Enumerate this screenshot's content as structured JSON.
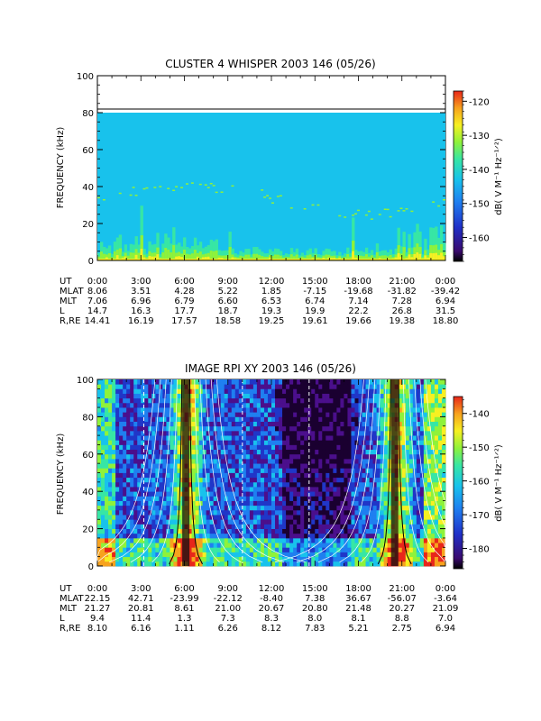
{
  "colors": {
    "whisper_bg": "#18c2ec",
    "colormap": [
      "#1a0030",
      "#4b0f8c",
      "#2036c8",
      "#1f7ff0",
      "#18c2ec",
      "#37e6a5",
      "#8ff23a",
      "#f7f022",
      "#f7a21e",
      "#e8261a"
    ]
  },
  "chart_data": [
    {
      "type": "heatmap",
      "title": "CLUSTER 4 WHISPER 2003 146 (05/26)",
      "ylabel": "FREQUENCY (kHz)",
      "ylim": [
        0,
        100
      ],
      "yticks": [
        "0",
        "20",
        "40",
        "60",
        "80",
        "100"
      ],
      "data_top_khz": 80,
      "colorbar": {
        "label": "dB( V M⁻¹ Hz⁻¹ᐟ²)",
        "range": [
          -167,
          -117
        ],
        "ticks": [
          "-120",
          "-130",
          "-140",
          "-150",
          "-160"
        ],
        "tick_values": [
          -120,
          -130,
          -140,
          -150,
          -160
        ]
      },
      "ephemeris": {
        "row_labels": [
          "UT",
          "MLAT",
          "MLT",
          "L",
          "R,RE"
        ],
        "columns": [
          [
            "0:00",
            "8.06",
            "7.06",
            "14.7",
            "14.41"
          ],
          [
            "3:00",
            "3.51",
            "6.96",
            "16.3",
            "16.19"
          ],
          [
            "6:00",
            "4.28",
            "6.79",
            "17.7",
            "17.57"
          ],
          [
            "9:00",
            "5.22",
            "6.60",
            "18.7",
            "18.58"
          ],
          [
            "12:00",
            "1.85",
            "6.53",
            "19.3",
            "19.25"
          ],
          [
            "15:00",
            "-7.15",
            "6.74",
            "19.9",
            "19.61"
          ],
          [
            "18:00",
            "-19.68",
            "7.14",
            "22.2",
            "19.66"
          ],
          [
            "21:00",
            "-31.82",
            "7.28",
            "26.8",
            "19.38"
          ],
          [
            "0:00",
            "-39.42",
            "6.94",
            "31.5",
            "18.80"
          ]
        ]
      }
    },
    {
      "type": "heatmap",
      "title": "IMAGE RPI XY 2003 146 (05/26)",
      "ylabel": "FREQUENCY (kHz)",
      "ylim": [
        0,
        100
      ],
      "yticks": [
        "0",
        "20",
        "40",
        "60",
        "80",
        "100"
      ],
      "perigee_hours": [
        6.1,
        20.5
      ],
      "colorbar": {
        "label": "dB( V M⁻¹ Hz⁻¹ᐟ²)",
        "range": [
          -186,
          -135
        ],
        "ticks": [
          "-140",
          "-150",
          "-160",
          "-170",
          "-180"
        ],
        "tick_values": [
          -140,
          -150,
          -160,
          -170,
          -180
        ]
      },
      "ephemeris": {
        "row_labels": [
          "UT",
          "MLAT",
          "MLT",
          "L",
          "R,RE"
        ],
        "columns": [
          [
            "0:00",
            "22.15",
            "21.27",
            "9.4",
            "8.10"
          ],
          [
            "3:00",
            "42.71",
            "20.81",
            "11.4",
            "6.16"
          ],
          [
            "6:00",
            "-23.99",
            "8.61",
            "1.3",
            "1.11"
          ],
          [
            "9:00",
            "-22.12",
            "21.00",
            "7.3",
            "6.26"
          ],
          [
            "12:00",
            "-8.40",
            "20.67",
            "8.3",
            "8.12"
          ],
          [
            "15:00",
            "7.38",
            "20.80",
            "8.0",
            "7.83"
          ],
          [
            "18:00",
            "36.67",
            "21.48",
            "8.1",
            "5.21"
          ],
          [
            "21:00",
            "-56.07",
            "20.27",
            "8.8",
            "2.75"
          ],
          [
            "0:00",
            "-3.64",
            "21.09",
            "7.0",
            "6.94"
          ]
        ]
      }
    }
  ]
}
